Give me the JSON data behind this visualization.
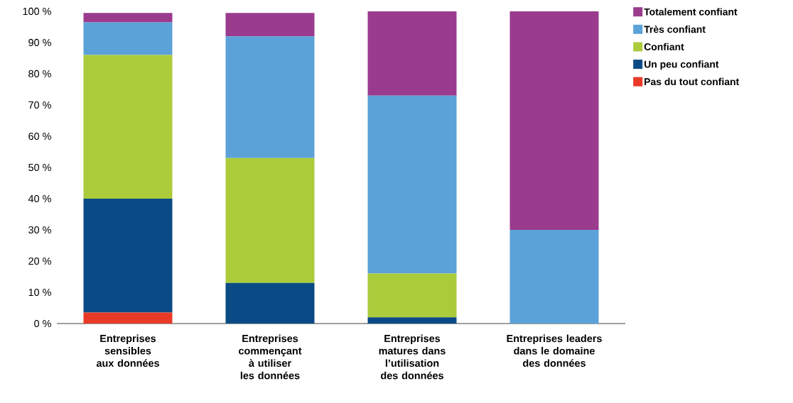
{
  "chart_data": {
    "type": "bar",
    "stacked": true,
    "legend": "right",
    "categories": [
      "Entreprises sensibles aux données",
      "Entreprises commençant à utiliser les données",
      "Entreprises matures dans l’utilisation des données",
      "Entreprises leaders dans le domaine des données"
    ],
    "series": [
      {
        "name": "Pas du tout confiant",
        "color": "#e83a26",
        "values": [
          3.5,
          0,
          0,
          0
        ]
      },
      {
        "name": "Un peu confiant",
        "color": "#0b4b85",
        "values": [
          36.5,
          13,
          2,
          0
        ]
      },
      {
        "name": "Confiant",
        "color": "#abcb3a",
        "values": [
          46,
          40,
          14,
          0
        ]
      },
      {
        "name": "Très confiant",
        "color": "#5ba2d8",
        "values": [
          10.5,
          39,
          57,
          30
        ]
      },
      {
        "name": "Totalement confiant",
        "color": "#9b3b8e",
        "values": [
          3,
          7.5,
          27,
          70
        ]
      }
    ],
    "ylim": [
      0,
      100
    ],
    "yticks": [
      {
        "value": 0,
        "label": "0 %"
      },
      {
        "value": 10,
        "label": "10 %"
      },
      {
        "value": 20,
        "label": "20 %"
      },
      {
        "value": 30,
        "label": "30 %"
      },
      {
        "value": 40,
        "label": "40 %"
      },
      {
        "value": 50,
        "label": "50 %"
      },
      {
        "value": 60,
        "label": "60 %"
      },
      {
        "value": 70,
        "label": "70 %"
      },
      {
        "value": 80,
        "label": "80 %"
      },
      {
        "value": 90,
        "label": "90 %"
      },
      {
        "value": 100,
        "label": "100 %"
      }
    ]
  }
}
